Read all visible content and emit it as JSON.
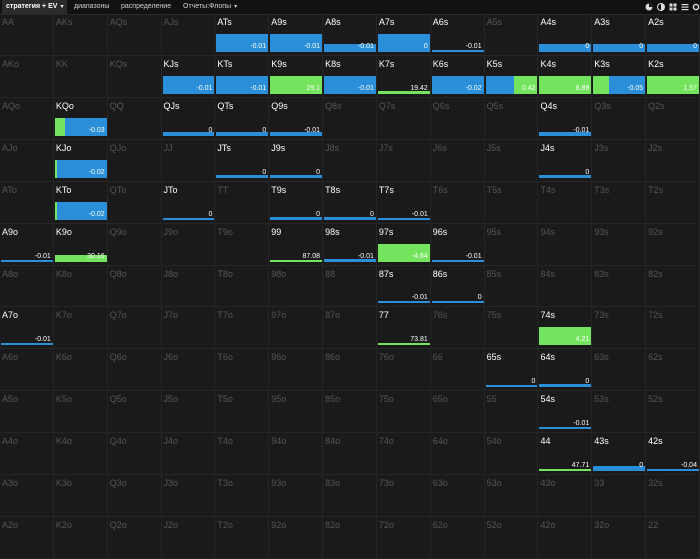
{
  "toolbar": {
    "tabs": [
      {
        "label": "стратегия + EV",
        "has_caret": true,
        "active": true
      },
      {
        "label": "диапазоны",
        "has_caret": false,
        "active": false
      },
      {
        "label": "распределение",
        "has_caret": false,
        "active": false
      },
      {
        "label": "Отчеты:Флопы",
        "has_caret": true,
        "active": false
      }
    ],
    "icons": [
      "pie-chart-icon",
      "contrast-icon",
      "grid-icon",
      "list-icon",
      "settings-icon"
    ]
  },
  "colors": {
    "background": "#1a1a1a",
    "call_bar": "#2a8fd8",
    "raise_bar": "#74e35d",
    "label_active": "#ffffff",
    "label_inactive": "#555555"
  },
  "grid": {
    "ranks": [
      "A",
      "K",
      "Q",
      "J",
      "T",
      "9",
      "8",
      "7",
      "6",
      "5",
      "4",
      "3",
      "2"
    ],
    "cells": {
      "ATs": {
        "active": true,
        "bars": [
          {
            "color": "blue",
            "value": -0.01,
            "label": "-0.01",
            "fill": 1.0
          }
        ]
      },
      "A9s": {
        "active": true,
        "bars": [
          {
            "color": "blue",
            "value": -0.01,
            "label": "-0.01",
            "fill": 1.0
          }
        ]
      },
      "A8s": {
        "active": true,
        "bars": [
          {
            "color": "blue",
            "value": -0.01,
            "label": "-0.01",
            "fill": 0.45
          }
        ]
      },
      "A7s": {
        "active": true,
        "bars": [
          {
            "color": "blue",
            "value": 0,
            "label": "0",
            "fill": 1.0
          }
        ]
      },
      "A6s": {
        "active": true,
        "bars": [
          {
            "color": "blue",
            "value": -0.01,
            "label": "-0.01",
            "fill": 0.05
          }
        ]
      },
      "A4s": {
        "active": true,
        "bars": [
          {
            "color": "blue",
            "value": 0,
            "label": "0",
            "fill": 0.45
          }
        ]
      },
      "A3s": {
        "active": true,
        "bars": [
          {
            "color": "blue",
            "value": 0,
            "label": "0",
            "fill": 0.45
          }
        ]
      },
      "A2s": {
        "active": true,
        "bars": [
          {
            "color": "blue",
            "value": 0,
            "label": "0",
            "fill": 0.45
          }
        ]
      },
      "KJs": {
        "active": true,
        "bars": [
          {
            "color": "blue",
            "value": -0.01,
            "label": "-0.01",
            "fill": 1.0
          }
        ]
      },
      "KTs": {
        "active": true,
        "bars": [
          {
            "color": "blue",
            "value": -0.01,
            "label": "-0.01",
            "fill": 1.0
          }
        ]
      },
      "K9s": {
        "active": true,
        "bars": [
          {
            "color": "green",
            "value": 29.1,
            "label": "29.1",
            "fill": 1.0
          }
        ]
      },
      "K8s": {
        "active": true,
        "bars": [
          {
            "color": "blue",
            "value": -0.01,
            "label": "-0.01",
            "fill": 1.0
          }
        ]
      },
      "K7s": {
        "active": true,
        "bars": [
          {
            "color": "green",
            "value": 19.42,
            "label": "19.42",
            "fill": 0.15
          }
        ]
      },
      "K6s": {
        "active": true,
        "bars": [
          {
            "color": "blue",
            "value": -0.02,
            "label": "-0.02",
            "fill": 1.0
          }
        ]
      },
      "K5s": {
        "active": true,
        "bars": [
          {
            "color": "blue",
            "value": 0.42,
            "label": "0.42",
            "fill": 1.0,
            "share": 0.55
          },
          {
            "color": "green",
            "value": 0.42,
            "label": "",
            "fill": 1.0,
            "share": 0.45
          }
        ]
      },
      "K4s": {
        "active": true,
        "bars": [
          {
            "color": "green",
            "value": 8.89,
            "label": "8.89",
            "fill": 1.0
          }
        ]
      },
      "K3s": {
        "active": true,
        "bars": [
          {
            "color": "green",
            "value": -0.05,
            "label": "",
            "fill": 1.0,
            "share": 0.3
          },
          {
            "color": "blue",
            "value": -0.05,
            "label": "-0.05",
            "fill": 1.0,
            "share": 0.7
          }
        ]
      },
      "K2s": {
        "active": true,
        "bars": [
          {
            "color": "green",
            "value": 1.57,
            "label": "1.57",
            "fill": 1.0
          }
        ]
      },
      "KQo": {
        "active": true,
        "bars": [
          {
            "color": "green",
            "value": -0.03,
            "label": "",
            "fill": 1.0,
            "share": 0.2
          },
          {
            "color": "blue",
            "value": -0.03,
            "label": "-0.03",
            "fill": 1.0,
            "share": 0.8
          }
        ]
      },
      "QJs": {
        "active": true,
        "bars": [
          {
            "color": "blue",
            "value": 0,
            "label": "0",
            "fill": 0.2
          }
        ]
      },
      "QTs": {
        "active": true,
        "bars": [
          {
            "color": "blue",
            "value": 0,
            "label": "0",
            "fill": 0.2
          }
        ]
      },
      "Q9s": {
        "active": true,
        "bars": [
          {
            "color": "blue",
            "value": -0.01,
            "label": "-0.01",
            "fill": 0.2
          }
        ]
      },
      "Q4s": {
        "active": true,
        "bars": [
          {
            "color": "blue",
            "value": -0.01,
            "label": "-0.01",
            "fill": 0.2
          }
        ]
      },
      "KJo": {
        "active": true,
        "bars": [
          {
            "color": "green",
            "value": -0.02,
            "label": "",
            "fill": 1.0,
            "share": 0.05
          },
          {
            "color": "blue",
            "value": -0.02,
            "label": "-0.02",
            "fill": 1.0,
            "share": 0.95
          }
        ]
      },
      "JTs": {
        "active": true,
        "bars": [
          {
            "color": "blue",
            "value": 0,
            "label": "0",
            "fill": 0.15
          }
        ]
      },
      "J9s": {
        "active": true,
        "bars": [
          {
            "color": "blue",
            "value": 0,
            "label": "0",
            "fill": 0.15
          }
        ]
      },
      "J4s": {
        "active": true,
        "bars": [
          {
            "color": "blue",
            "value": 0,
            "label": "0",
            "fill": 0.15
          }
        ]
      },
      "KTo": {
        "active": true,
        "bars": [
          {
            "color": "green",
            "value": -0.02,
            "label": "",
            "fill": 1.0,
            "share": 0.05
          },
          {
            "color": "blue",
            "value": -0.02,
            "label": "-0.02",
            "fill": 1.0,
            "share": 0.95
          }
        ]
      },
      "JTo": {
        "active": true,
        "bars": [
          {
            "color": "blue",
            "value": 0,
            "label": "0",
            "fill": 0.04
          }
        ]
      },
      "T9s": {
        "active": true,
        "bars": [
          {
            "color": "blue",
            "value": 0,
            "label": "0",
            "fill": 0.15
          }
        ]
      },
      "T8s": {
        "active": true,
        "bars": [
          {
            "color": "blue",
            "value": 0,
            "label": "0",
            "fill": 0.15
          }
        ]
      },
      "T7s": {
        "active": true,
        "bars": [
          {
            "color": "blue",
            "value": -0.01,
            "label": "-0.01",
            "fill": 0.04
          }
        ]
      },
      "A9o": {
        "active": true,
        "bars": [
          {
            "color": "blue",
            "value": -0.01,
            "label": "-0.01",
            "fill": 0.04
          }
        ]
      },
      "K9o": {
        "active": true,
        "bars": [
          {
            "color": "green",
            "value": 30.16,
            "label": "30.16",
            "fill": 0.35
          }
        ]
      },
      "99": {
        "active": true,
        "bars": [
          {
            "color": "green",
            "value": 87.08,
            "label": "87.08",
            "fill": 0.08
          }
        ]
      },
      "98s": {
        "active": true,
        "bars": [
          {
            "color": "blue",
            "value": -0.01,
            "label": "-0.01",
            "fill": 0.15
          }
        ]
      },
      "97s": {
        "active": true,
        "bars": [
          {
            "color": "green",
            "value": -4.64,
            "label": "-4.64",
            "fill": 1.0
          }
        ]
      },
      "96s": {
        "active": true,
        "bars": [
          {
            "color": "blue",
            "value": -0.01,
            "label": "-0.01",
            "fill": 0.08
          }
        ]
      },
      "87s": {
        "active": true,
        "bars": [
          {
            "color": "blue",
            "value": -0.01,
            "label": "-0.01",
            "fill": 0.04
          }
        ]
      },
      "86s": {
        "active": true,
        "bars": [
          {
            "color": "blue",
            "value": 0,
            "label": "0",
            "fill": 0.04
          }
        ]
      },
      "A7o": {
        "active": true,
        "bars": [
          {
            "color": "blue",
            "value": -0.01,
            "label": "-0.01",
            "fill": 0.08
          }
        ]
      },
      "77": {
        "active": true,
        "bars": [
          {
            "color": "green",
            "value": 73.81,
            "label": "73.81",
            "fill": 0.08
          }
        ]
      },
      "74s": {
        "active": true,
        "bars": [
          {
            "color": "green",
            "value": 4.21,
            "label": "4.21",
            "fill": 1.0
          }
        ]
      },
      "65s": {
        "active": true,
        "bars": [
          {
            "color": "blue",
            "value": 0,
            "label": "0",
            "fill": 0.04
          }
        ]
      },
      "64s": {
        "active": true,
        "bars": [
          {
            "color": "blue",
            "value": 0,
            "label": "0",
            "fill": 0.2
          }
        ]
      },
      "54s": {
        "active": true,
        "bars": [
          {
            "color": "blue",
            "value": -0.01,
            "label": "-0.01",
            "fill": 0.04
          }
        ]
      },
      "44": {
        "active": true,
        "bars": [
          {
            "color": "green",
            "value": 47.71,
            "label": "47.71",
            "fill": 0.04
          }
        ]
      },
      "43s": {
        "active": true,
        "bars": [
          {
            "color": "blue",
            "value": 0,
            "label": "0",
            "fill": 0.3
          }
        ]
      },
      "42s": {
        "active": true,
        "bars": [
          {
            "color": "blue",
            "value": -0.04,
            "label": "-0.04",
            "fill": 0.0
          }
        ]
      }
    }
  }
}
